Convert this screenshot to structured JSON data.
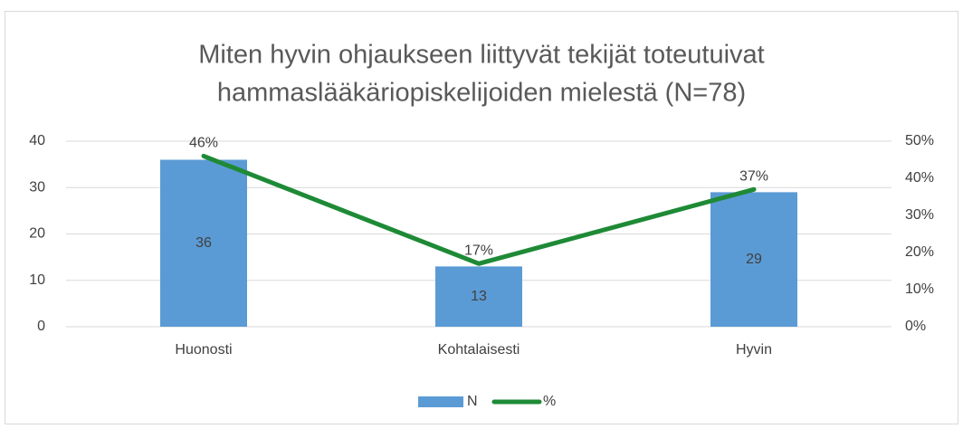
{
  "chart_data": {
    "type": "bar-line",
    "title": [
      "Miten hyvin ohjaukseen liittyvät tekijät toteutuivat",
      "hammaslääkäriopiskelijoiden mielestä (N=78)"
    ],
    "categories": [
      "Huonosti",
      "Kohtalaisesti",
      "Hyvin"
    ],
    "series": [
      {
        "name": "N",
        "type": "bar",
        "color": "#5b9bd5",
        "values": [
          36,
          13,
          29
        ]
      },
      {
        "name": "%",
        "type": "line",
        "axis": "y2",
        "color": "#1e8a36",
        "values": [
          46,
          17,
          37
        ],
        "value_labels": [
          "46%",
          "17%",
          "37%"
        ]
      }
    ],
    "ylim": [
      0,
      40
    ],
    "yticks": [
      0,
      10,
      20,
      30,
      40
    ],
    "y2lim": [
      0,
      50
    ],
    "y2ticks": [
      {
        "value": 0,
        "label": "0%"
      },
      {
        "value": 10,
        "label": "10%"
      },
      {
        "value": 20,
        "label": "20%"
      },
      {
        "value": 30,
        "label": "30%"
      },
      {
        "value": 40,
        "label": "40%"
      },
      {
        "value": 50,
        "label": "50%"
      }
    ],
    "grid": true,
    "legend": "bottom"
  }
}
